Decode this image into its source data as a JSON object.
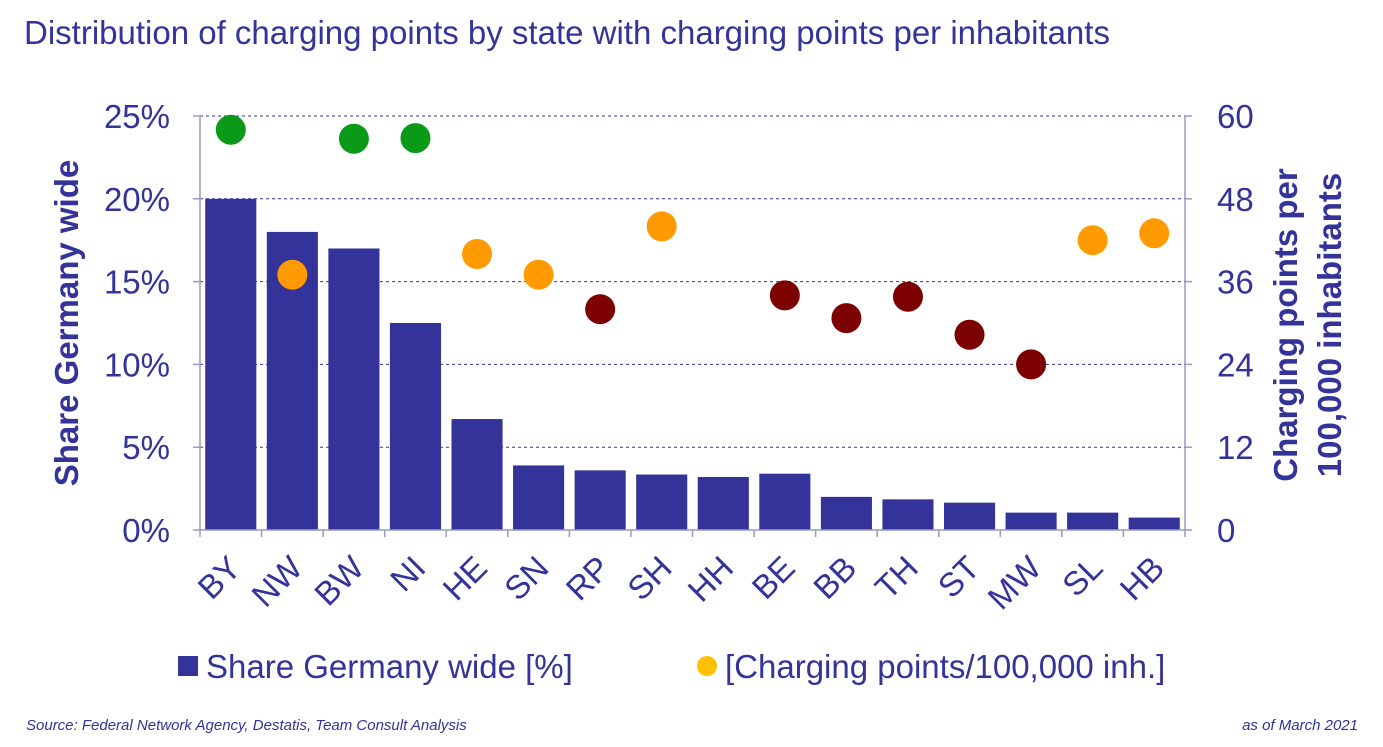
{
  "title": "Distribution of charging points by state with charging points per inhabitants",
  "colors": {
    "bar": "#33339a",
    "text": "#33339a",
    "axis": "#9a9ac2",
    "grid": "#33339a",
    "high": "#0a9a17",
    "medium": "#ff9a00",
    "low": "#7c0000",
    "legend_dot": "#ffc000"
  },
  "chart_data": {
    "type": "bar",
    "title": "Distribution of charging points by state with charging points per inhabitants",
    "categories": [
      "BY",
      "NW",
      "BW",
      "NI",
      "HE",
      "SN",
      "RP",
      "SH",
      "HH",
      "BE",
      "BB",
      "TH",
      "ST",
      "MW",
      "SL",
      "HB"
    ],
    "series": [
      {
        "name": "Share Germany wide [%]",
        "axis": "left",
        "type": "bar",
        "values": [
          20.0,
          18.0,
          17.0,
          12.5,
          6.7,
          3.9,
          3.6,
          3.35,
          3.2,
          3.4,
          2.0,
          1.85,
          1.65,
          1.05,
          1.05,
          0.75
        ]
      },
      {
        "name": "[Charging points/100,000 inh.]",
        "axis": "right",
        "type": "scatter",
        "values": [
          58.0,
          37.0,
          56.7,
          56.8,
          40.0,
          37.0,
          32.0,
          44.0,
          null,
          34.0,
          30.7,
          33.8,
          28.3,
          24.0,
          42.0,
          43.0
        ],
        "levels": [
          "high",
          "medium",
          "high",
          "high",
          "medium",
          "medium",
          "low",
          "medium",
          null,
          "low",
          "low",
          "low",
          "low",
          "low",
          "medium",
          "medium"
        ]
      }
    ],
    "yleft": {
      "label": "Share Germany wide",
      "ylim": [
        0,
        25
      ],
      "ticks": [
        0,
        5,
        10,
        15,
        20,
        25
      ],
      "tick_labels": [
        "0%",
        "5%",
        "10%",
        "15%",
        "20%",
        "25%"
      ]
    },
    "yright": {
      "label_lines": [
        "Charging points per",
        "100,000 inhabitants"
      ],
      "ylim": [
        0,
        60
      ],
      "ticks": [
        0,
        12,
        24,
        36,
        48,
        60
      ],
      "tick_labels": [
        "0",
        "12",
        "24",
        "36",
        "48",
        "60"
      ]
    },
    "grid": true,
    "legend_position": "bottom"
  },
  "legend": {
    "bar_label": "Share Germany wide [%]",
    "dot_label": "[Charging points/100,000 inh.]"
  },
  "footer": {
    "source": "Source: Federal Network Agency, Destatis, Team Consult Analysis",
    "date": "as of March 2021"
  }
}
